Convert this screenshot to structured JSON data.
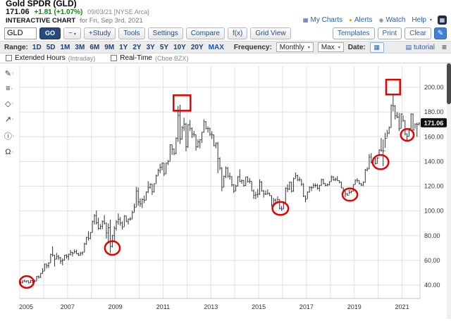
{
  "header": {
    "symbol_title": "Gold SPDR (GLD)",
    "price": "171.06",
    "change": "+1.81 (+1.07%)",
    "date_exchange": "09/03/21 [NYSE Arca]",
    "chart_label": "INTERACTIVE CHART",
    "chart_for": "for Fri, Sep 3rd, 2021",
    "links": [
      {
        "name": "my-charts",
        "label": "My Charts",
        "glyph": "▦",
        "glyph_color": "#2a5db0"
      },
      {
        "name": "alerts",
        "label": "Alerts",
        "glyph": "●",
        "glyph_color": "#f0a500"
      },
      {
        "name": "watch",
        "label": "Watch",
        "glyph": "◉",
        "glyph_color": "#7a8aa0"
      },
      {
        "name": "help",
        "label": "Help",
        "glyph": "",
        "glyph_color": "#2a5db0",
        "suffix": "▾"
      }
    ]
  },
  "toolbar": {
    "symbol_input": "GLD",
    "go": "GO",
    "style_selector": "~",
    "buttons": [
      "+Study",
      "Tools",
      "Settings",
      "Compare",
      "f(x)",
      "Grid View"
    ],
    "right_buttons": [
      "Templates",
      "Print",
      "Clear"
    ]
  },
  "rangebar": {
    "label": "Range:",
    "ranges": [
      "1D",
      "5D",
      "1M",
      "3M",
      "6M",
      "9M",
      "1Y",
      "2Y",
      "3Y",
      "5Y",
      "10Y",
      "20Y",
      "MAX"
    ],
    "active_range": "MAX",
    "frequency_label": "Frequency:",
    "frequency_value": "Monthly",
    "max_value": "Max",
    "date_label": "Date:",
    "tutorial": "tutorial"
  },
  "options": {
    "extended_hours": "Extended Hours",
    "extended_hours_sub": "(Intraday)",
    "realtime": "Real-Time",
    "realtime_sub": "(Cboe BZX)"
  },
  "tools": {
    "caret": "›",
    "items": [
      {
        "name": "annotate",
        "glyph": "✎"
      },
      {
        "name": "trendlines",
        "glyph": "≡"
      },
      {
        "name": "shapes",
        "glyph": "◇"
      },
      {
        "name": "arrows",
        "glyph": "↗"
      },
      {
        "name": "info-note",
        "glyph": "ⓘ"
      },
      {
        "name": "magnet",
        "glyph": "Ω"
      }
    ]
  },
  "ui": {
    "caret_down": "▾",
    "menu_glyph": "≡",
    "pencil_glyph": "✎",
    "calendar_glyph": "▦",
    "apps_glyph": "▦",
    "tutorial_glyph": "▤"
  },
  "chart_data": {
    "type": "bar",
    "subtype": "ohlc-monthly",
    "symbol": "GLD",
    "frequency": "monthly",
    "start": "2005-01",
    "end": "2021-09",
    "start_year": 2005,
    "num_years": 17,
    "ylim": [
      30,
      218
    ],
    "grid": true,
    "yticks": [
      40,
      60,
      80,
      100,
      120,
      140,
      160,
      180,
      200
    ],
    "ytick_labels": [
      "40.00",
      "60.00",
      "80.00",
      "100.00",
      "120.00",
      "140.00",
      "160.00",
      "180.00",
      "200.00"
    ],
    "xtick_labels": [
      "2005",
      "2007",
      "2009",
      "2011",
      "2013",
      "2015",
      "2017",
      "2019",
      "2021"
    ],
    "last_price": 171.06,
    "last_price_label": "171.06",
    "first_open": 43.0,
    "bar_color": "#333333",
    "annotation_color": "#e60000",
    "months": [
      [
        43.1,
        41.0,
        42.2
      ],
      [
        43.8,
        41.4,
        43.5
      ],
      [
        44.4,
        42.4,
        42.8
      ],
      [
        43.8,
        42.1,
        43.5
      ],
      [
        43.6,
        41.3,
        41.9
      ],
      [
        44.2,
        41.7,
        43.7
      ],
      [
        43.9,
        41.7,
        42.9
      ],
      [
        44.4,
        42.6,
        43.3
      ],
      [
        47.4,
        43.3,
        46.9
      ],
      [
        47.8,
        45.2,
        46.6
      ],
      [
        49.9,
        45.7,
        49.5
      ],
      [
        53.7,
        49.2,
        51.3
      ],
      [
        57.5,
        51.6,
        57.0
      ],
      [
        57.4,
        53.5,
        55.6
      ],
      [
        58.5,
        53.9,
        57.8
      ],
      [
        65.4,
        57.9,
        64.8
      ],
      [
        71.4,
        63.0,
        64.2
      ],
      [
        64.6,
        54.9,
        61.0
      ],
      [
        66.0,
        61.0,
        63.2
      ],
      [
        64.4,
        60.5,
        62.1
      ],
      [
        62.8,
        57.2,
        59.4
      ],
      [
        61.6,
        56.0,
        60.2
      ],
      [
        64.6,
        60.1,
        64.1
      ],
      [
        65.0,
        61.4,
        63.2
      ],
      [
        65.4,
        60.3,
        64.9
      ],
      [
        68.4,
        63.9,
        66.5
      ],
      [
        66.9,
        63.1,
        65.7
      ],
      [
        68.9,
        65.6,
        67.0
      ],
      [
        68.6,
        65.0,
        65.3
      ],
      [
        66.2,
        63.6,
        64.2
      ],
      [
        66.9,
        64.0,
        65.8
      ],
      [
        67.2,
        64.2,
        66.6
      ],
      [
        74.3,
        66.6,
        73.4
      ],
      [
        79.0,
        72.5,
        78.6
      ],
      [
        83.6,
        76.1,
        77.8
      ],
      [
        82.9,
        77.1,
        82.5
      ],
      [
        92.1,
        82.6,
        91.4
      ],
      [
        97.5,
        89.0,
        96.2
      ],
      [
        100.4,
        89.0,
        90.4
      ],
      [
        94.5,
        84.6,
        85.8
      ],
      [
        89.3,
        84.9,
        87.5
      ],
      [
        92.4,
        85.2,
        91.4
      ],
      [
        96.7,
        89.0,
        90.1
      ],
      [
        90.6,
        77.6,
        82.2
      ],
      [
        90.0,
        73.6,
        86.4
      ],
      [
        93.0,
        66.0,
        71.3
      ],
      [
        80.7,
        70.4,
        80.1
      ],
      [
        87.7,
        74.6,
        86.0
      ],
      [
        92.5,
        84.1,
        91.1
      ],
      [
        98.0,
        88.9,
        93.2
      ],
      [
        95.0,
        88.0,
        90.2
      ],
      [
        91.6,
        85.0,
        87.1
      ],
      [
        96.6,
        87.2,
        95.9
      ],
      [
        96.2,
        91.0,
        91.4
      ],
      [
        93.9,
        89.0,
        93.4
      ],
      [
        95.0,
        92.1,
        93.5
      ],
      [
        100.1,
        93.2,
        98.7
      ],
      [
        106.0,
        98.8,
        102.8
      ],
      [
        119.5,
        102.9,
        116.1
      ],
      [
        119.0,
        104.2,
        107.3
      ],
      [
        110.1,
        103.4,
        105.9
      ],
      [
        110.3,
        102.3,
        109.2
      ],
      [
        112.4,
        106.3,
        108.7
      ],
      [
        115.8,
        108.6,
        115.4
      ],
      [
        124.0,
        114.4,
        118.9
      ],
      [
        122.3,
        117.9,
        121.7
      ],
      [
        121.9,
        113.0,
        115.5
      ],
      [
        122.4,
        114.9,
        122.0
      ],
      [
        129.4,
        122.1,
        128.4
      ],
      [
        134.2,
        128.4,
        132.6
      ],
      [
        138.1,
        130.4,
        135.4
      ],
      [
        139.2,
        132.8,
        138.7
      ],
      [
        138.8,
        128.2,
        130.0
      ],
      [
        139.1,
        129.7,
        138.7
      ],
      [
        141.2,
        137.0,
        140.0
      ],
      [
        153.9,
        140.3,
        153.6
      ],
      [
        153.4,
        145.4,
        150.0
      ],
      [
        150.5,
        145.0,
        146.5
      ],
      [
        159.4,
        145.8,
        158.8
      ],
      [
        184.8,
        155.8,
        177.3
      ],
      [
        185.9,
        154.2,
        158.1
      ],
      [
        168.8,
        157.6,
        167.4
      ],
      [
        175.3,
        164.6,
        170.2
      ],
      [
        171.2,
        148.3,
        151.9
      ],
      [
        170.1,
        151.0,
        169.8
      ],
      [
        173.6,
        164.5,
        166.6
      ],
      [
        167.6,
        159.1,
        162.1
      ],
      [
        164.8,
        159.7,
        161.8
      ],
      [
        161.9,
        148.8,
        151.9
      ],
      [
        158.0,
        151.1,
        155.9
      ],
      [
        158.1,
        150.7,
        157.5
      ],
      [
        164.0,
        155.0,
        163.6
      ],
      [
        174.1,
        163.4,
        172.2
      ],
      [
        172.7,
        166.0,
        166.7
      ],
      [
        168.4,
        163.4,
        166.6
      ],
      [
        167.4,
        160.6,
        162.0
      ],
      [
        164.4,
        158.1,
        161.5
      ],
      [
        161.9,
        152.2,
        152.9
      ],
      [
        155.6,
        150.7,
        154.5
      ],
      [
        155.9,
        130.6,
        142.3
      ],
      [
        143.4,
        133.1,
        134.6
      ],
      [
        135.4,
        115.9,
        119.1
      ],
      [
        128.7,
        119.2,
        127.9
      ],
      [
        136.0,
        126.6,
        134.6
      ],
      [
        135.5,
        126.9,
        128.2
      ],
      [
        131.0,
        125.3,
        127.7
      ],
      [
        128.1,
        119.7,
        121.1
      ],
      [
        121.7,
        114.5,
        116.1
      ],
      [
        121.3,
        116.0,
        120.1
      ],
      [
        128.2,
        119.8,
        127.6
      ],
      [
        133.7,
        123.3,
        124.0
      ],
      [
        125.5,
        122.0,
        124.6
      ],
      [
        125.1,
        119.6,
        120.5
      ],
      [
        127.7,
        120.1,
        127.4
      ],
      [
        128.0,
        123.0,
        123.8
      ],
      [
        126.6,
        122.3,
        124.0
      ],
      [
        123.9,
        116.0,
        116.2
      ],
      [
        117.4,
        109.7,
        112.7
      ],
      [
        115.5,
        109.5,
        113.0
      ],
      [
        117.8,
        110.7,
        113.6
      ],
      [
        125.6,
        112.9,
        123.4
      ],
      [
        124.1,
        115.6,
        116.2
      ],
      [
        116.9,
        110.8,
        113.7
      ],
      [
        116.5,
        113.0,
        113.5
      ],
      [
        117.4,
        113.4,
        114.1
      ],
      [
        114.9,
        112.1,
        112.4
      ],
      [
        112.6,
        103.5,
        105.0
      ],
      [
        110.5,
        103.7,
        108.7
      ],
      [
        110.0,
        105.9,
        106.8
      ],
      [
        111.9,
        107.3,
        109.2
      ],
      [
        109.6,
        101.3,
        101.9
      ],
      [
        103.9,
        100.2,
        101.5
      ],
      [
        107.8,
        101.5,
        107.0
      ],
      [
        119.2,
        106.6,
        118.2
      ],
      [
        121.5,
        115.2,
        117.7
      ],
      [
        123.8,
        116.9,
        123.2
      ],
      [
        123.5,
        114.9,
        115.9
      ],
      [
        127.0,
        115.5,
        126.1
      ],
      [
        131.1,
        126.3,
        128.5
      ],
      [
        129.3,
        124.2,
        125.1
      ],
      [
        127.5,
        123.8,
        125.5
      ],
      [
        125.6,
        120.2,
        121.6
      ],
      [
        122.3,
        111.2,
        111.9
      ],
      [
        112.5,
        107.0,
        109.6
      ],
      [
        115.8,
        110.0,
        115.3
      ],
      [
        119.9,
        114.8,
        119.0
      ],
      [
        119.9,
        116.0,
        118.7
      ],
      [
        122.4,
        118.4,
        120.7
      ],
      [
        122.3,
        118.9,
        120.6
      ],
      [
        121.9,
        117.3,
        118.3
      ],
      [
        121.0,
        115.7,
        120.7
      ],
      [
        126.1,
        120.6,
        125.3
      ],
      [
        126.0,
        121.5,
        122.2
      ],
      [
        122.5,
        120.0,
        120.7
      ],
      [
        122.3,
        120.0,
        121.2
      ],
      [
        123.9,
        120.6,
        123.7
      ],
      [
        128.7,
        124.0,
        127.5
      ],
      [
        128.1,
        124.5,
        125.1
      ],
      [
        127.0,
        124.2,
        125.7
      ],
      [
        128.1,
        124.3,
        124.5
      ],
      [
        124.9,
        122.4,
        123.2
      ],
      [
        123.7,
        118.4,
        118.7
      ],
      [
        118.8,
        115.1,
        115.9
      ],
      [
        116.0,
        111.1,
        113.9
      ],
      [
        114.5,
        112.3,
        112.8
      ],
      [
        117.0,
        113.6,
        115.0
      ],
      [
        116.4,
        114.2,
        115.9
      ],
      [
        121.4,
        115.8,
        121.3
      ],
      [
        125.4,
        121.4,
        124.9
      ],
      [
        126.4,
        123.0,
        124.7
      ],
      [
        124.8,
        121.4,
        122.2
      ],
      [
        122.6,
        120.2,
        120.9
      ],
      [
        123.9,
        120.0,
        123.2
      ],
      [
        134.0,
        122.8,
        133.1
      ],
      [
        135.4,
        132.0,
        134.0
      ],
      [
        146.0,
        133.8,
        143.6
      ],
      [
        146.8,
        138.5,
        139.0
      ],
      [
        143.1,
        139.6,
        142.9
      ],
      [
        143.0,
        137.5,
        138.3
      ],
      [
        143.4,
        138.2,
        142.9
      ],
      [
        149.8,
        144.5,
        149.3
      ],
      [
        158.9,
        148.0,
        148.8
      ],
      [
        157.7,
        136.1,
        148.7
      ],
      [
        163.3,
        151.0,
        158.7
      ],
      [
        165.5,
        159.5,
        162.9
      ],
      [
        168.4,
        162.2,
        167.4
      ],
      [
        186.2,
        167.5,
        185.3
      ],
      [
        194.4,
        180.5,
        184.8
      ],
      [
        185.7,
        174.0,
        177.1
      ],
      [
        180.0,
        175.0,
        176.0
      ],
      [
        179.3,
        164.6,
        166.7
      ],
      [
        178.9,
        166.9,
        178.4
      ],
      [
        177.3,
        172.0,
        173.2
      ],
      [
        173.2,
        161.0,
        162.3
      ],
      [
        162.7,
        157.1,
        160.3
      ],
      [
        167.0,
        160.5,
        166.6
      ],
      [
        179.0,
        166.6,
        178.5
      ],
      [
        178.9,
        165.0,
        165.6
      ],
      [
        170.8,
        166.5,
        170.3
      ],
      [
        171.4,
        160.0,
        170.0
      ],
      [
        171.5,
        169.3,
        171.1
      ]
    ],
    "annotations": [
      {
        "shape": "ellipse",
        "month": 3,
        "price": 42.5,
        "w": 7,
        "h": 9.5
      },
      {
        "shape": "ellipse",
        "month": 46,
        "price": 70,
        "w": 7.5,
        "h": 11
      },
      {
        "shape": "rect",
        "month": 81,
        "price": 187.3,
        "w": 8.5,
        "h": 12.5
      },
      {
        "shape": "ellipse",
        "month": 130.4,
        "price": 102,
        "w": 8,
        "h": 10.5
      },
      {
        "shape": "ellipse",
        "month": 165.3,
        "price": 113.2,
        "w": 7.5,
        "h": 10
      },
      {
        "shape": "ellipse",
        "month": 180.7,
        "price": 139.5,
        "w": 8,
        "h": 11.5
      },
      {
        "shape": "rect",
        "month": 187,
        "price": 200.2,
        "w": 7,
        "h": 12
      },
      {
        "shape": "ellipse",
        "month": 194.1,
        "price": 161.5,
        "w": 6.5,
        "h": 9.5
      }
    ]
  }
}
